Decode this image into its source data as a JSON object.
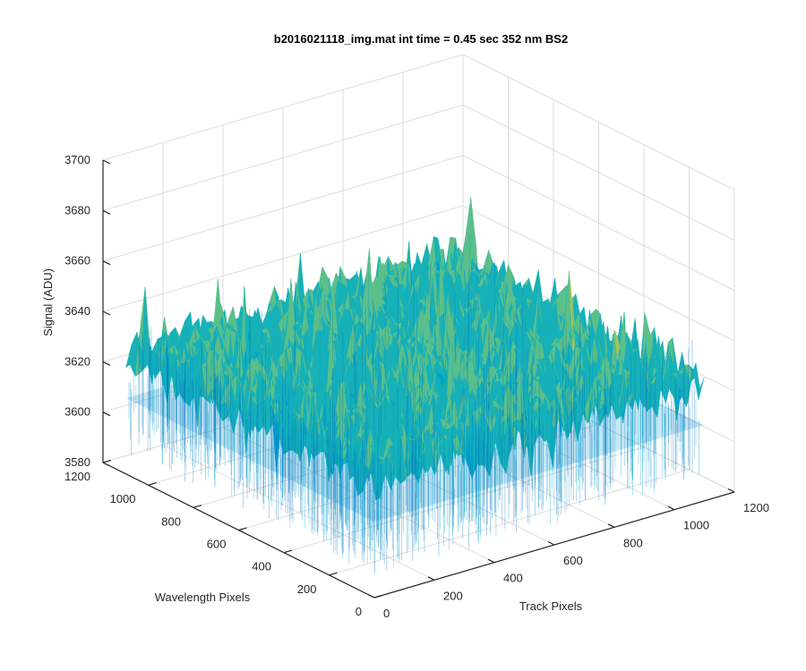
{
  "chart_data": {
    "type": "surface",
    "title": "b2016021118_img.mat int time = 0.45 sec  352 nm BS2",
    "xlabel": "Track Pixels",
    "ylabel": "Wavelength Pixels",
    "zlabel": "Signal (ADU)",
    "xlim": [
      0,
      1200
    ],
    "ylim": [
      0,
      1200
    ],
    "zlim": [
      3580,
      3700
    ],
    "xticks": [
      "0",
      "200",
      "400",
      "600",
      "800",
      "1000",
      "1200"
    ],
    "yticks": [
      "0",
      "200",
      "400",
      "600",
      "800",
      "1000",
      "1200"
    ],
    "zticks": [
      "3580",
      "3600",
      "3620",
      "3640",
      "3660",
      "3680",
      "3700"
    ],
    "grid": true,
    "data_extent": {
      "x": [
        1,
        1100
      ],
      "y": [
        1,
        1100
      ]
    },
    "signal_mean": 3628,
    "signal_noise_range": [
      3600,
      3680
    ],
    "colormap": "parula",
    "colors": [
      "#0072bd",
      "#00a0cf",
      "#17b1b8",
      "#5bbf8a",
      "#a6c55a",
      "#d7c23c"
    ]
  }
}
